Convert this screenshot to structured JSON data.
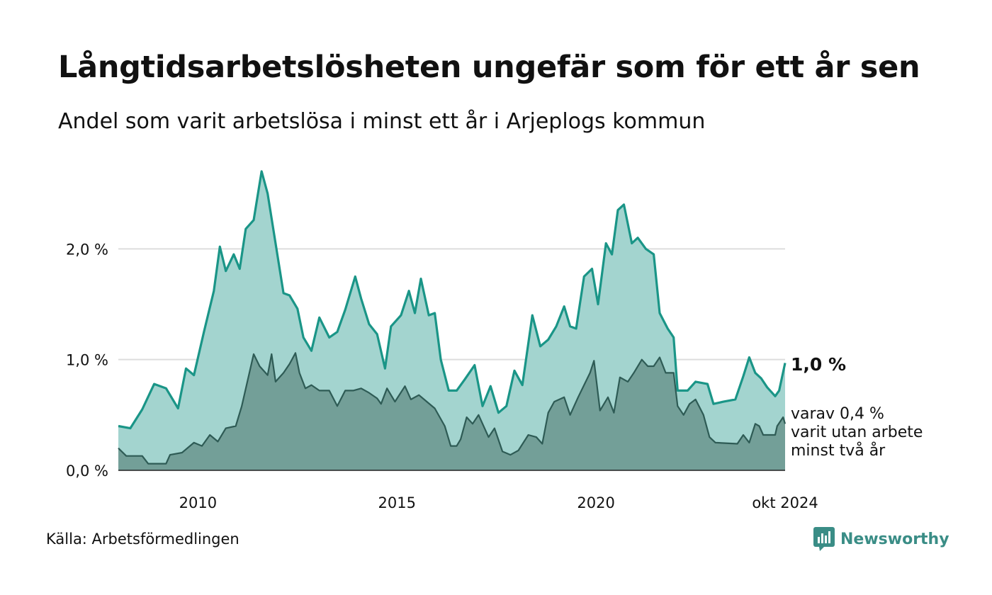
{
  "title": "Långtidsarbetslösheten ungefär som för ett år sen",
  "subtitle": "Andel som varit arbetslösa i minst ett år i Arjeplogs kommun",
  "source": "Källa: Arbetsförmedlingen",
  "brand": {
    "name": "Newsworthy",
    "icon": "bar-chart-bubble-icon"
  },
  "colors": {
    "main_line": "#1a9587",
    "main_fill": "#a3d4cf",
    "sub_line": "#2e5b55",
    "sub_fill": "#739f98",
    "grid": "#dddddd"
  },
  "chart_data": {
    "type": "area",
    "title": "Långtidsarbetslösheten ungefär som för ett år sen",
    "ylim": [
      0,
      3.0
    ],
    "xlim": [
      2008.0,
      2024.75
    ],
    "yticks": [
      0,
      1.0,
      2.0
    ],
    "ytick_labels": [
      "0,0 %",
      "1,0 %",
      "2,0 %"
    ],
    "xticks": [
      2010,
      2015,
      2020,
      2024.75
    ],
    "xtick_labels": [
      "2010",
      "2015",
      "2020",
      "okt 2024"
    ],
    "grid": true,
    "latest_label": "1,0 %",
    "sub_label_lines": [
      "varav 0,4 %",
      "varit utan arbete",
      "minst två år"
    ],
    "series": [
      {
        "name": "Arbetslösa i minst ett år",
        "points": [
          [
            2008.0,
            0.4
          ],
          [
            2008.3,
            0.38
          ],
          [
            2008.6,
            0.55
          ],
          [
            2008.9,
            0.78
          ],
          [
            2009.2,
            0.74
          ],
          [
            2009.5,
            0.56
          ],
          [
            2009.7,
            0.92
          ],
          [
            2009.9,
            0.86
          ],
          [
            2010.15,
            1.25
          ],
          [
            2010.4,
            1.62
          ],
          [
            2010.55,
            2.02
          ],
          [
            2010.7,
            1.8
          ],
          [
            2010.9,
            1.95
          ],
          [
            2011.05,
            1.82
          ],
          [
            2011.2,
            2.18
          ],
          [
            2011.4,
            2.26
          ],
          [
            2011.6,
            2.7
          ],
          [
            2011.75,
            2.5
          ],
          [
            2011.95,
            2.05
          ],
          [
            2012.15,
            1.6
          ],
          [
            2012.3,
            1.58
          ],
          [
            2012.5,
            1.46
          ],
          [
            2012.65,
            1.2
          ],
          [
            2012.85,
            1.08
          ],
          [
            2013.05,
            1.38
          ],
          [
            2013.3,
            1.2
          ],
          [
            2013.5,
            1.25
          ],
          [
            2013.7,
            1.45
          ],
          [
            2013.95,
            1.75
          ],
          [
            2014.1,
            1.55
          ],
          [
            2014.3,
            1.32
          ],
          [
            2014.5,
            1.23
          ],
          [
            2014.7,
            0.92
          ],
          [
            2014.85,
            1.3
          ],
          [
            2015.1,
            1.4
          ],
          [
            2015.3,
            1.62
          ],
          [
            2015.45,
            1.42
          ],
          [
            2015.6,
            1.73
          ],
          [
            2015.8,
            1.4
          ],
          [
            2015.95,
            1.42
          ],
          [
            2016.1,
            1.0
          ],
          [
            2016.3,
            0.72
          ],
          [
            2016.5,
            0.72
          ],
          [
            2016.7,
            0.82
          ],
          [
            2016.95,
            0.95
          ],
          [
            2017.15,
            0.58
          ],
          [
            2017.35,
            0.76
          ],
          [
            2017.55,
            0.52
          ],
          [
            2017.75,
            0.58
          ],
          [
            2017.95,
            0.9
          ],
          [
            2018.15,
            0.77
          ],
          [
            2018.4,
            1.4
          ],
          [
            2018.6,
            1.12
          ],
          [
            2018.8,
            1.18
          ],
          [
            2019.0,
            1.3
          ],
          [
            2019.2,
            1.48
          ],
          [
            2019.35,
            1.3
          ],
          [
            2019.5,
            1.28
          ],
          [
            2019.7,
            1.75
          ],
          [
            2019.9,
            1.82
          ],
          [
            2020.05,
            1.5
          ],
          [
            2020.25,
            2.05
          ],
          [
            2020.4,
            1.95
          ],
          [
            2020.55,
            2.35
          ],
          [
            2020.7,
            2.4
          ],
          [
            2020.9,
            2.05
          ],
          [
            2021.05,
            2.1
          ],
          [
            2021.25,
            2.0
          ],
          [
            2021.45,
            1.95
          ],
          [
            2021.6,
            1.42
          ],
          [
            2021.8,
            1.28
          ],
          [
            2021.95,
            1.2
          ],
          [
            2022.05,
            0.72
          ],
          [
            2022.3,
            0.72
          ],
          [
            2022.5,
            0.8
          ],
          [
            2022.8,
            0.78
          ],
          [
            2022.95,
            0.6
          ],
          [
            2023.2,
            0.62
          ],
          [
            2023.5,
            0.64
          ],
          [
            2023.7,
            0.85
          ],
          [
            2023.85,
            1.02
          ],
          [
            2024.0,
            0.88
          ],
          [
            2024.15,
            0.83
          ],
          [
            2024.3,
            0.75
          ],
          [
            2024.5,
            0.67
          ],
          [
            2024.6,
            0.72
          ],
          [
            2024.75,
            0.97
          ]
        ]
      },
      {
        "name": "varit utan arbete minst två år",
        "points": [
          [
            2008.0,
            0.2
          ],
          [
            2008.2,
            0.13
          ],
          [
            2008.6,
            0.13
          ],
          [
            2008.75,
            0.06
          ],
          [
            2009.2,
            0.06
          ],
          [
            2009.3,
            0.14
          ],
          [
            2009.6,
            0.16
          ],
          [
            2009.9,
            0.25
          ],
          [
            2010.1,
            0.22
          ],
          [
            2010.3,
            0.32
          ],
          [
            2010.5,
            0.26
          ],
          [
            2010.7,
            0.38
          ],
          [
            2010.95,
            0.4
          ],
          [
            2011.1,
            0.58
          ],
          [
            2011.4,
            1.05
          ],
          [
            2011.55,
            0.94
          ],
          [
            2011.75,
            0.86
          ],
          [
            2011.85,
            1.05
          ],
          [
            2011.95,
            0.8
          ],
          [
            2012.15,
            0.88
          ],
          [
            2012.3,
            0.96
          ],
          [
            2012.45,
            1.06
          ],
          [
            2012.55,
            0.88
          ],
          [
            2012.7,
            0.74
          ],
          [
            2012.85,
            0.77
          ],
          [
            2013.05,
            0.72
          ],
          [
            2013.3,
            0.72
          ],
          [
            2013.5,
            0.58
          ],
          [
            2013.7,
            0.72
          ],
          [
            2013.9,
            0.72
          ],
          [
            2014.1,
            0.74
          ],
          [
            2014.3,
            0.7
          ],
          [
            2014.5,
            0.65
          ],
          [
            2014.6,
            0.6
          ],
          [
            2014.75,
            0.74
          ],
          [
            2014.95,
            0.62
          ],
          [
            2015.2,
            0.76
          ],
          [
            2015.35,
            0.64
          ],
          [
            2015.55,
            0.68
          ],
          [
            2015.75,
            0.62
          ],
          [
            2015.95,
            0.56
          ],
          [
            2016.2,
            0.4
          ],
          [
            2016.35,
            0.22
          ],
          [
            2016.5,
            0.22
          ],
          [
            2016.6,
            0.28
          ],
          [
            2016.75,
            0.48
          ],
          [
            2016.9,
            0.42
          ],
          [
            2017.05,
            0.5
          ],
          [
            2017.3,
            0.3
          ],
          [
            2017.45,
            0.38
          ],
          [
            2017.65,
            0.17
          ],
          [
            2017.85,
            0.14
          ],
          [
            2018.05,
            0.18
          ],
          [
            2018.3,
            0.32
          ],
          [
            2018.5,
            0.3
          ],
          [
            2018.65,
            0.24
          ],
          [
            2018.8,
            0.52
          ],
          [
            2018.95,
            0.62
          ],
          [
            2019.2,
            0.66
          ],
          [
            2019.35,
            0.5
          ],
          [
            2019.55,
            0.66
          ],
          [
            2019.85,
            0.88
          ],
          [
            2019.95,
            0.99
          ],
          [
            2020.1,
            0.54
          ],
          [
            2020.3,
            0.66
          ],
          [
            2020.45,
            0.52
          ],
          [
            2020.6,
            0.84
          ],
          [
            2020.8,
            0.8
          ],
          [
            2020.95,
            0.88
          ],
          [
            2021.15,
            1.0
          ],
          [
            2021.3,
            0.94
          ],
          [
            2021.45,
            0.94
          ],
          [
            2021.6,
            1.02
          ],
          [
            2021.75,
            0.88
          ],
          [
            2021.95,
            0.88
          ],
          [
            2022.05,
            0.58
          ],
          [
            2022.2,
            0.5
          ],
          [
            2022.35,
            0.6
          ],
          [
            2022.5,
            0.64
          ],
          [
            2022.7,
            0.5
          ],
          [
            2022.85,
            0.3
          ],
          [
            2023.0,
            0.25
          ],
          [
            2023.55,
            0.24
          ],
          [
            2023.7,
            0.32
          ],
          [
            2023.85,
            0.25
          ],
          [
            2024.0,
            0.42
          ],
          [
            2024.1,
            0.4
          ],
          [
            2024.2,
            0.32
          ],
          [
            2024.5,
            0.32
          ],
          [
            2024.55,
            0.4
          ],
          [
            2024.7,
            0.48
          ],
          [
            2024.75,
            0.42
          ]
        ]
      }
    ]
  }
}
